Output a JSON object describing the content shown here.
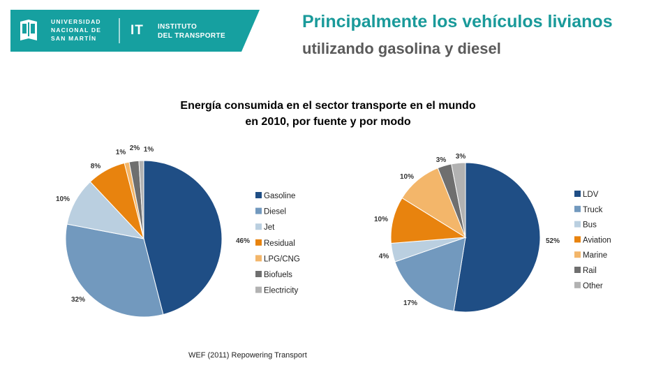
{
  "header": {
    "university": [
      "UNIVERSIDAD",
      "NACIONAL DE",
      "SAN MARTÍN"
    ],
    "it_mark": "IT",
    "institute": [
      "INSTITUTO",
      "DEL TRANSPORTE"
    ],
    "title": "Principalmente los vehículos livianos",
    "subtitle": "utilizando gasolina y diesel"
  },
  "chart_title": [
    "Energía consumida en el sector transporte en el mundo",
    "en 2010, por fuente y por modo"
  ],
  "source": "WEF (2011) Repowering Transport",
  "colors": {
    "brand": "#16a0a0"
  },
  "chart_data": [
    {
      "type": "pie",
      "slices": [
        {
          "name": "Gasoline",
          "value": 46,
          "label": "46%",
          "color": "#1f4e85"
        },
        {
          "name": "Diesel",
          "value": 32,
          "label": "32%",
          "color": "#7299be"
        },
        {
          "name": "Jet",
          "value": 10,
          "label": "10%",
          "color": "#bacfe0"
        },
        {
          "name": "Residual",
          "value": 8,
          "label": "8%",
          "color": "#e8830e"
        },
        {
          "name": "LPG/CNG",
          "value": 1,
          "label": "1%",
          "color": "#f3b66a"
        },
        {
          "name": "Biofuels",
          "value": 2,
          "label": "2%",
          "color": "#6f6f6f"
        },
        {
          "name": "Electricity",
          "value": 1,
          "label": "1%",
          "color": "#b2b2b2"
        }
      ],
      "legend": "right"
    },
    {
      "type": "pie",
      "slices": [
        {
          "name": "LDV",
          "value": 52,
          "label": "52%",
          "color": "#1f4e85"
        },
        {
          "name": "Truck",
          "value": 17,
          "label": "17%",
          "color": "#7299be"
        },
        {
          "name": "Bus",
          "value": 4,
          "label": "4%",
          "color": "#bacfe0"
        },
        {
          "name": "Aviation",
          "value": 10,
          "label": "10%",
          "color": "#e8830e"
        },
        {
          "name": "Marine",
          "value": 10,
          "label": "10%",
          "color": "#f3b66a"
        },
        {
          "name": "Rail",
          "value": 3,
          "label": "3%",
          "color": "#6f6f6f"
        },
        {
          "name": "Other",
          "value": 3,
          "label": "3%",
          "color": "#b2b2b2"
        }
      ],
      "legend": "right"
    }
  ]
}
